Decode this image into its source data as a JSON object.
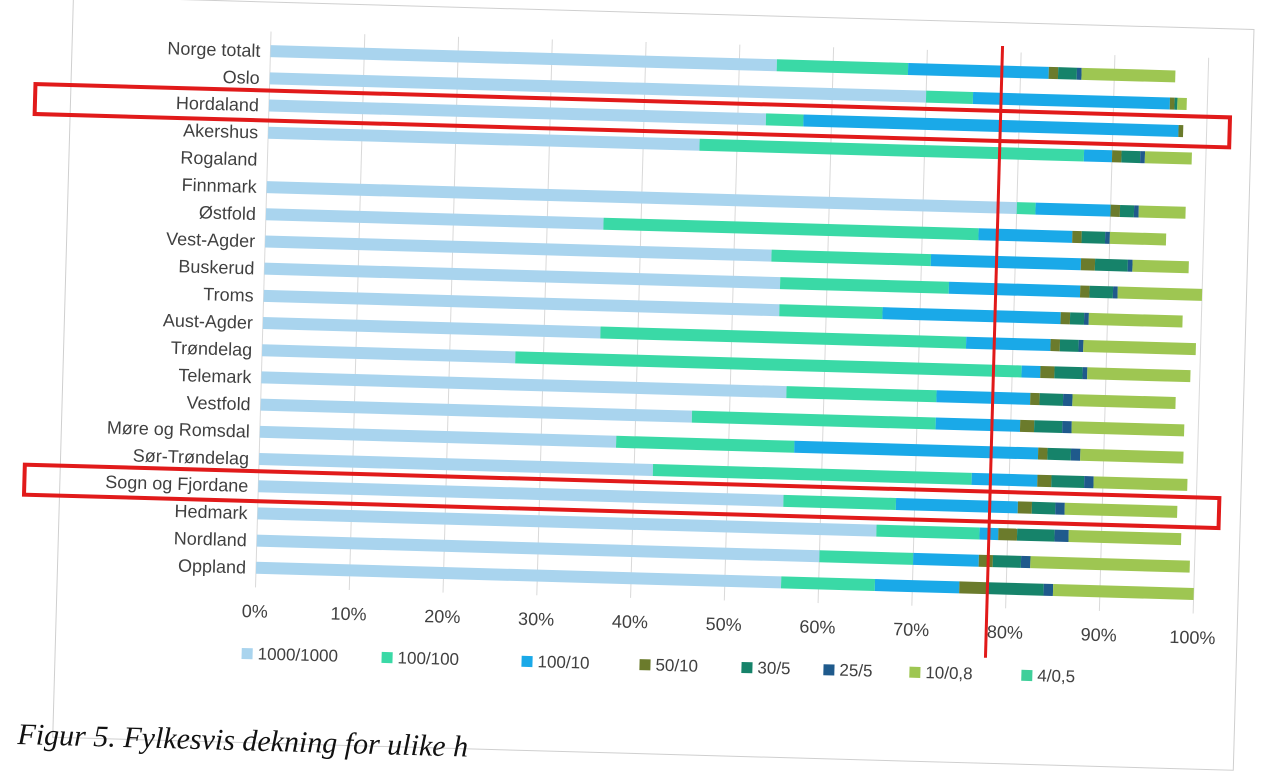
{
  "chart_data": {
    "type": "bar",
    "orientation": "horizontal",
    "stacked": true,
    "categories": [
      "Norge totalt",
      "Oslo",
      "Hordaland",
      "Akershus",
      "Rogaland",
      "Finnmark",
      "Østfold",
      "Vest-Agder",
      "Buskerud",
      "Troms",
      "Aust-Agder",
      "Trøndelag",
      "Telemark",
      "Vestfold",
      "Møre og Romsdal",
      "Sør-Trøndelag",
      "Sogn og Fjordane",
      "Hedmark",
      "Nordland",
      "Oppland"
    ],
    "series": [
      {
        "name": "1000/1000",
        "color": "#a9d4ee",
        "values": [
          54,
          70,
          53,
          46,
          0,
          80,
          36,
          54,
          55,
          55,
          36,
          27,
          56,
          46,
          38,
          42,
          56,
          66,
          60,
          56
        ]
      },
      {
        "name": "100/100",
        "color": "#3ad9a6",
        "values": [
          14,
          5,
          4,
          41,
          0,
          2,
          40,
          17,
          18,
          11,
          39,
          54,
          16,
          26,
          19,
          34,
          12,
          11,
          10,
          10
        ]
      },
      {
        "name": "100/10",
        "color": "#1aa9e8",
        "values": [
          15,
          21,
          40,
          3,
          0,
          8,
          10,
          16,
          14,
          19,
          9,
          2,
          10,
          9,
          26,
          7,
          13,
          2,
          7,
          9
        ]
      },
      {
        "name": "50/10",
        "color": "#6b7b2c",
        "values": [
          1,
          0.5,
          0.5,
          1,
          0,
          1,
          1,
          1.5,
          1,
          1,
          1,
          1.5,
          1,
          1.5,
          1,
          1.5,
          1.5,
          2,
          1.5,
          3
        ]
      },
      {
        "name": "30/5",
        "color": "#16836a",
        "values": [
          2,
          0.3,
          0,
          2,
          0,
          1.5,
          2.5,
          3.5,
          2.5,
          1.5,
          2,
          3,
          2.5,
          3,
          2.5,
          3.5,
          2.5,
          4,
          3,
          6
        ]
      },
      {
        "name": "25/5",
        "color": "#1f5a8c",
        "values": [
          0.5,
          0,
          0,
          0.5,
          0,
          0.5,
          0.5,
          0.5,
          0.5,
          0.5,
          0.5,
          0.5,
          1,
          1,
          1,
          1,
          1,
          1.5,
          1,
          1
        ]
      },
      {
        "name": "10/0,8",
        "color": "#9ec652",
        "values": [
          10,
          1,
          0,
          5,
          0,
          5,
          6,
          6,
          9,
          10,
          12,
          11,
          11,
          12,
          11,
          10,
          12,
          12,
          17,
          15
        ]
      },
      {
        "name": "4/0,5",
        "color": "#3fcf9a",
        "values": [
          0,
          0,
          0,
          0,
          0,
          0,
          0,
          0,
          0,
          0,
          0,
          0,
          0,
          0,
          0,
          0,
          0,
          0,
          0,
          0
        ]
      }
    ],
    "xlim": [
      0,
      100
    ],
    "x_ticks": [
      "0%",
      "10%",
      "20%",
      "30%",
      "40%",
      "50%",
      "60%",
      "70%",
      "80%",
      "90%",
      "100%"
    ],
    "grid": true,
    "legend": "bottom",
    "reference_line": {
      "x": 78,
      "color": "#e11a1a"
    },
    "highlighted_categories": [
      "Hordaland",
      "Sogn og Fjordane"
    ],
    "highlight_color": "#e11a1a"
  },
  "caption": "Figur 5. Fylkesvis dekning for ulike h"
}
